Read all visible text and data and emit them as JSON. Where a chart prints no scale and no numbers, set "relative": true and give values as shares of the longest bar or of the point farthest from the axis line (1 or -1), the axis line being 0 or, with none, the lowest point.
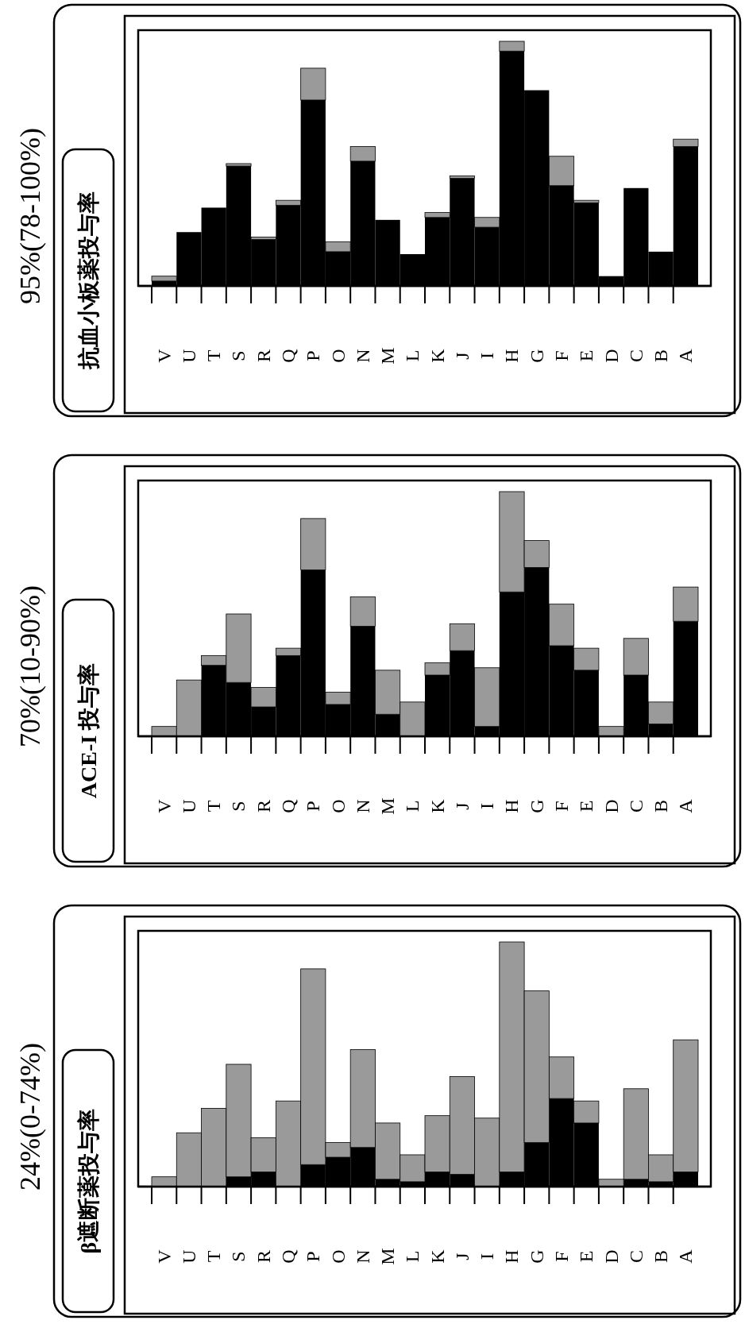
{
  "chart_data": [
    {
      "type": "bar",
      "title": "24%(0-74%)",
      "subtitle": "β遮断薬投与率",
      "stacked": true,
      "relative": true,
      "categories": [
        "V",
        "U",
        "T",
        "S",
        "R",
        "Q",
        "P",
        "O",
        "N",
        "M",
        "L",
        "K",
        "J",
        "I",
        "H",
        "G",
        "F",
        "E",
        "D",
        "C",
        "B",
        "A"
      ],
      "series": [
        {
          "color": "#000000",
          "values": [
            0,
            0,
            0,
            0.04,
            0.06,
            0,
            0.09,
            0.12,
            0.16,
            0.03,
            0.02,
            0.06,
            0.05,
            0,
            0.06,
            0.18,
            0.36,
            0.26,
            0,
            0.03,
            0.02,
            0.06
          ]
        },
        {
          "color": "#9a9a9a",
          "values": [
            0.04,
            0.22,
            0.32,
            0.46,
            0.14,
            0.35,
            0.8,
            0.06,
            0.4,
            0.23,
            0.11,
            0.23,
            0.4,
            0.28,
            0.94,
            0.62,
            0.17,
            0.09,
            0.03,
            0.37,
            0.11,
            0.54
          ]
        }
      ]
    },
    {
      "type": "bar",
      "title": "70%(10-90%)",
      "subtitle": "ACE-I 投与率",
      "stacked": true,
      "relative": true,
      "categories": [
        "V",
        "U",
        "T",
        "S",
        "R",
        "Q",
        "P",
        "O",
        "N",
        "M",
        "L",
        "K",
        "J",
        "I",
        "H",
        "G",
        "F",
        "E",
        "D",
        "C",
        "B",
        "A"
      ],
      "series": [
        {
          "color": "#000000",
          "values": [
            0,
            0,
            0.29,
            0.22,
            0.12,
            0.33,
            0.68,
            0.13,
            0.45,
            0.09,
            0,
            0.25,
            0.35,
            0.04,
            0.59,
            0.69,
            0.37,
            0.27,
            0,
            0.25,
            0.05,
            0.47
          ]
        },
        {
          "color": "#9a9a9a",
          "values": [
            0.04,
            0.23,
            0.04,
            0.28,
            0.08,
            0.03,
            0.21,
            0.05,
            0.12,
            0.18,
            0.14,
            0.05,
            0.11,
            0.24,
            0.41,
            0.11,
            0.17,
            0.09,
            0.04,
            0.15,
            0.09,
            0.14
          ]
        }
      ]
    },
    {
      "type": "bar",
      "title": "95%(78-100%)",
      "subtitle": "抗血小板薬投与率",
      "stacked": true,
      "relative": true,
      "categories": [
        "V",
        "U",
        "T",
        "S",
        "R",
        "Q",
        "P",
        "O",
        "N",
        "M",
        "L",
        "K",
        "J",
        "I",
        "H",
        "G",
        "F",
        "E",
        "D",
        "C",
        "B",
        "A"
      ],
      "series": [
        {
          "color": "#000000",
          "values": [
            0.02,
            0.22,
            0.32,
            0.49,
            0.19,
            0.33,
            0.76,
            0.14,
            0.51,
            0.27,
            0.13,
            0.28,
            0.44,
            0.24,
            0.96,
            0.8,
            0.41,
            0.34,
            0.04,
            0.4,
            0.14,
            0.57
          ]
        },
        {
          "color": "#9a9a9a",
          "values": [
            0.02,
            0,
            0,
            0.01,
            0.01,
            0.02,
            0.13,
            0.04,
            0.06,
            0,
            0,
            0.02,
            0.01,
            0.04,
            0.04,
            0,
            0.12,
            0.01,
            0,
            0,
            0,
            0.03
          ]
        }
      ]
    }
  ]
}
